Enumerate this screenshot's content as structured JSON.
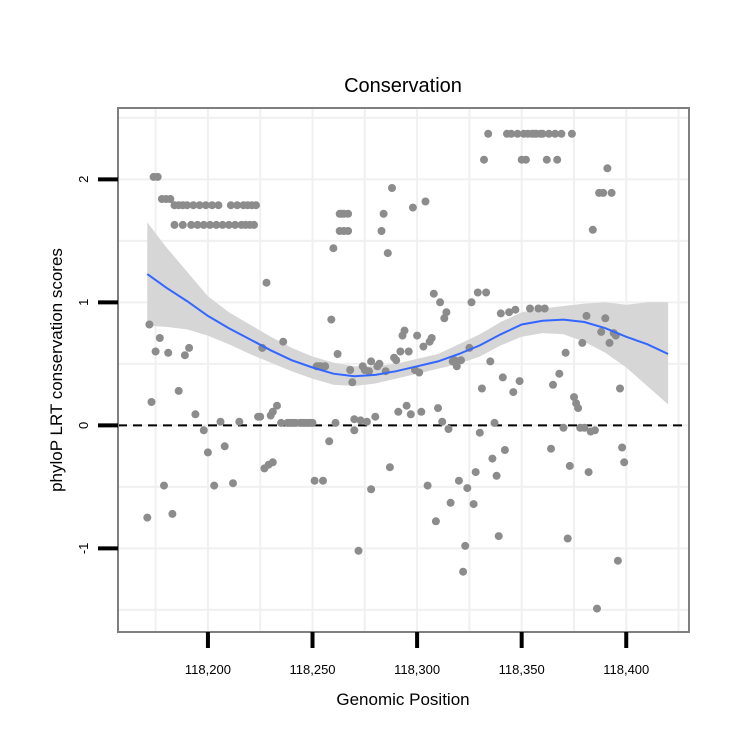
{
  "chart_data": {
    "type": "scatter",
    "title": "Conservation",
    "xlabel": "Genomic Position",
    "ylabel": "phyloP LRT conservation scores",
    "xlim": [
      118157,
      118430
    ],
    "ylim": [
      -1.68,
      2.58
    ],
    "x_ticks": [
      118200,
      118250,
      118300,
      118350,
      118400
    ],
    "x_tick_labels": [
      "118,200",
      "118,250",
      "118,300",
      "118,350",
      "118,400"
    ],
    "y_ticks": [
      -1,
      0,
      1,
      2
    ],
    "y_tick_labels": [
      "-1",
      "0",
      "1",
      "2"
    ],
    "reference_line": {
      "y": 0,
      "style": "dashed"
    },
    "colors": {
      "points": "#8c8c8c",
      "smooth": "#3366ff",
      "ribbon": "#d6d6d6",
      "panel_border": "#7f7f7f",
      "grid": "#f0f0f0"
    },
    "points": [
      [
        118171,
        -0.75
      ],
      [
        118172,
        0.82
      ],
      [
        118173,
        0.19
      ],
      [
        118174,
        2.02
      ],
      [
        118175,
        0.6
      ],
      [
        118176,
        2.02
      ],
      [
        118177,
        0.71
      ],
      [
        118178,
        1.84
      ],
      [
        118179,
        -0.49
      ],
      [
        118180,
        1.84
      ],
      [
        118181,
        0.59
      ],
      [
        118182,
        1.84
      ],
      [
        118183,
        -0.72
      ],
      [
        118184,
        1.63
      ],
      [
        118184,
        1.79
      ],
      [
        118186,
        0.28
      ],
      [
        118186,
        1.79
      ],
      [
        118188,
        1.63
      ],
      [
        118188,
        1.79
      ],
      [
        118189,
        0.57
      ],
      [
        118190,
        1.79
      ],
      [
        118191,
        0.63
      ],
      [
        118192,
        1.63
      ],
      [
        118193,
        1.79
      ],
      [
        118194,
        0.09
      ],
      [
        118195,
        1.63
      ],
      [
        118196,
        1.79
      ],
      [
        118198,
        -0.04
      ],
      [
        118198,
        1.63
      ],
      [
        118199,
        1.79
      ],
      [
        118200,
        -0.22
      ],
      [
        118201,
        1.63
      ],
      [
        118202,
        1.79
      ],
      [
        118203,
        -0.49
      ],
      [
        118204,
        1.63
      ],
      [
        118205,
        1.79
      ],
      [
        118206,
        0.03
      ],
      [
        118207,
        1.63
      ],
      [
        118208,
        -0.17
      ],
      [
        118210,
        1.63
      ],
      [
        118211,
        1.79
      ],
      [
        118212,
        -0.47
      ],
      [
        118213,
        1.63
      ],
      [
        118214,
        1.79
      ],
      [
        118215,
        0.03
      ],
      [
        118216,
        1.63
      ],
      [
        118217,
        1.79
      ],
      [
        118218,
        1.63
      ],
      [
        118219,
        1.79
      ],
      [
        118220,
        1.63
      ],
      [
        118221,
        1.79
      ],
      [
        118222,
        1.63
      ],
      [
        118223,
        1.79
      ],
      [
        118224,
        0.07
      ],
      [
        118225,
        0.07
      ],
      [
        118226,
        0.63
      ],
      [
        118227,
        -0.35
      ],
      [
        118228,
        1.16
      ],
      [
        118229,
        -0.32
      ],
      [
        118230,
        0.08
      ],
      [
        118231,
        0.11
      ],
      [
        118231,
        -0.3
      ],
      [
        118233,
        0.16
      ],
      [
        118235,
        0.02
      ],
      [
        118236,
        0.68
      ],
      [
        118238,
        0.02
      ],
      [
        118239,
        0.02
      ],
      [
        118240,
        0.02
      ],
      [
        118241,
        0.02
      ],
      [
        118242,
        0.02
      ],
      [
        118244,
        0.02
      ],
      [
        118245,
        0.02
      ],
      [
        118246,
        0.02
      ],
      [
        118247,
        0.02
      ],
      [
        118248,
        0.02
      ],
      [
        118249,
        0.02
      ],
      [
        118250,
        0.02
      ],
      [
        118251,
        -0.45
      ],
      [
        118252,
        0.48
      ],
      [
        118253,
        0.48
      ],
      [
        118254,
        0.48
      ],
      [
        118255,
        -0.45
      ],
      [
        118256,
        0.48
      ],
      [
        118256,
        0.48
      ],
      [
        118258,
        -0.13
      ],
      [
        118259,
        0.86
      ],
      [
        118260,
        1.44
      ],
      [
        118261,
        0.02
      ],
      [
        118262,
        0.58
      ],
      [
        118263,
        1.72
      ],
      [
        118263,
        1.58
      ],
      [
        118264,
        1.72
      ],
      [
        118265,
        1.58
      ],
      [
        118265,
        1.72
      ],
      [
        118267,
        1.58
      ],
      [
        118267,
        1.72
      ],
      [
        118268,
        0.45
      ],
      [
        118269,
        0.35
      ],
      [
        118270,
        -0.04
      ],
      [
        118270,
        0.05
      ],
      [
        118272,
        -1.02
      ],
      [
        118273,
        0.04
      ],
      [
        118274,
        0.48
      ],
      [
        118275,
        0.45
      ],
      [
        118276,
        0.03
      ],
      [
        118277,
        0.44
      ],
      [
        118278,
        -0.52
      ],
      [
        118278,
        0.52
      ],
      [
        118280,
        0.07
      ],
      [
        118281,
        0.48
      ],
      [
        118282,
        0.5
      ],
      [
        118283,
        1.58
      ],
      [
        118284,
        1.72
      ],
      [
        118285,
        0.44
      ],
      [
        118286,
        1.4
      ],
      [
        118287,
        -0.34
      ],
      [
        118288,
        1.93
      ],
      [
        118289,
        0.55
      ],
      [
        118290,
        0.53
      ],
      [
        118291,
        0.11
      ],
      [
        118292,
        0.6
      ],
      [
        118293,
        0.73
      ],
      [
        118294,
        0.77
      ],
      [
        118295,
        0.16
      ],
      [
        118296,
        0.6
      ],
      [
        118297,
        0.09
      ],
      [
        118298,
        1.77
      ],
      [
        118299,
        0.45
      ],
      [
        118300,
        0.73
      ],
      [
        118301,
        0.43
      ],
      [
        118302,
        0.11
      ],
      [
        118303,
        0.64
      ],
      [
        118304,
        1.82
      ],
      [
        118305,
        -0.49
      ],
      [
        118306,
        0.68
      ],
      [
        118307,
        0.71
      ],
      [
        118308,
        1.07
      ],
      [
        118309,
        -0.78
      ],
      [
        118310,
        0.14
      ],
      [
        118311,
        1.0
      ],
      [
        118312,
        0.03
      ],
      [
        118313,
        0.87
      ],
      [
        118314,
        0.92
      ],
      [
        118315,
        -0.03
      ],
      [
        118316,
        -0.63
      ],
      [
        118317,
        0.52
      ],
      [
        118318,
        0.53
      ],
      [
        118319,
        0.48
      ],
      [
        118320,
        -0.45
      ],
      [
        118321,
        0.53
      ],
      [
        118322,
        -1.19
      ],
      [
        118323,
        -0.98
      ],
      [
        118324,
        -0.51
      ],
      [
        118325,
        0.63
      ],
      [
        118326,
        1.0
      ],
      [
        118327,
        -0.64
      ],
      [
        118328,
        -0.38
      ],
      [
        118329,
        1.08
      ],
      [
        118330,
        -0.06
      ],
      [
        118331,
        0.3
      ],
      [
        118332,
        2.16
      ],
      [
        118333,
        1.08
      ],
      [
        118334,
        2.37
      ],
      [
        118335,
        0.52
      ],
      [
        118336,
        -0.27
      ],
      [
        118337,
        0.02
      ],
      [
        118338,
        -0.41
      ],
      [
        118339,
        -0.9
      ],
      [
        118340,
        0.91
      ],
      [
        118341,
        0.39
      ],
      [
        118342,
        -0.2
      ],
      [
        118343,
        2.37
      ],
      [
        118344,
        0.92
      ],
      [
        118345,
        2.37
      ],
      [
        118346,
        0.27
      ],
      [
        118347,
        0.94
      ],
      [
        118348,
        2.37
      ],
      [
        118349,
        0.36
      ],
      [
        118350,
        2.16
      ],
      [
        118351,
        2.37
      ],
      [
        118352,
        2.16
      ],
      [
        118353,
        2.37
      ],
      [
        118354,
        0.95
      ],
      [
        118355,
        2.37
      ],
      [
        118356,
        2.37
      ],
      [
        118357,
        2.37
      ],
      [
        118358,
        0.95
      ],
      [
        118359,
        2.37
      ],
      [
        118360,
        2.37
      ],
      [
        118361,
        0.95
      ],
      [
        118362,
        2.16
      ],
      [
        118363,
        2.37
      ],
      [
        118364,
        -0.19
      ],
      [
        118365,
        0.33
      ],
      [
        118366,
        2.37
      ],
      [
        118367,
        2.16
      ],
      [
        118368,
        0.42
      ],
      [
        118369,
        2.37
      ],
      [
        118370,
        -0.02
      ],
      [
        118371,
        0.59
      ],
      [
        118372,
        -0.92
      ],
      [
        118373,
        -0.33
      ],
      [
        118374,
        2.37
      ],
      [
        118375,
        0.23
      ],
      [
        118376,
        0.18
      ],
      [
        118377,
        0.14
      ],
      [
        118378,
        -0.02
      ],
      [
        118379,
        0.67
      ],
      [
        118380,
        -0.02
      ],
      [
        118381,
        0.89
      ],
      [
        118382,
        -0.38
      ],
      [
        118383,
        -0.05
      ],
      [
        118384,
        1.59
      ],
      [
        118385,
        -0.04
      ],
      [
        118386,
        -1.49
      ],
      [
        118387,
        1.89
      ],
      [
        118388,
        0.76
      ],
      [
        118389,
        1.89
      ],
      [
        118390,
        0.87
      ],
      [
        118391,
        2.09
      ],
      [
        118392,
        0.67
      ],
      [
        118393,
        1.89
      ],
      [
        118394,
        0.75
      ],
      [
        118395,
        0.73
      ],
      [
        118396,
        -1.1
      ],
      [
        118397,
        0.3
      ],
      [
        118398,
        -0.18
      ],
      [
        118399,
        -0.3
      ]
    ],
    "smooth": {
      "x": [
        118171,
        118180,
        118190,
        118200,
        118210,
        118220,
        118230,
        118240,
        118250,
        118260,
        118270,
        118280,
        118290,
        118300,
        118310,
        118320,
        118330,
        118340,
        118350,
        118360,
        118370,
        118380,
        118390,
        118400,
        118410,
        118420
      ],
      "y": [
        1.23,
        1.12,
        1.01,
        0.89,
        0.79,
        0.7,
        0.61,
        0.53,
        0.47,
        0.42,
        0.4,
        0.41,
        0.44,
        0.48,
        0.52,
        0.58,
        0.65,
        0.74,
        0.82,
        0.85,
        0.86,
        0.84,
        0.79,
        0.72,
        0.66,
        0.58
      ],
      "lower": [
        0.81,
        0.8,
        0.78,
        0.73,
        0.66,
        0.58,
        0.51,
        0.44,
        0.38,
        0.33,
        0.32,
        0.34,
        0.38,
        0.42,
        0.46,
        0.5,
        0.56,
        0.65,
        0.72,
        0.75,
        0.74,
        0.68,
        0.59,
        0.47,
        0.32,
        0.17
      ],
      "upper": [
        1.65,
        1.45,
        1.25,
        1.05,
        0.92,
        0.82,
        0.72,
        0.63,
        0.56,
        0.51,
        0.48,
        0.48,
        0.5,
        0.54,
        0.58,
        0.66,
        0.74,
        0.84,
        0.92,
        0.95,
        0.97,
        0.99,
        1.0,
        0.98,
        1.0,
        1.0
      ]
    }
  }
}
